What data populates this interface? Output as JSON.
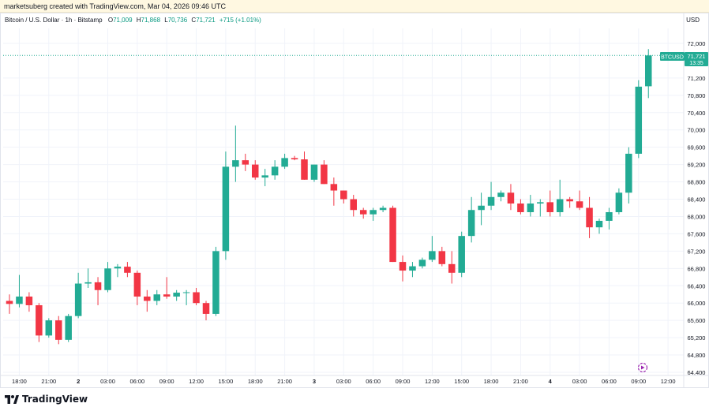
{
  "attribution": "marketsuberg created with TradingView.com, Mar 04, 2026 09:46 UTC",
  "legend": {
    "symbol_desc": "Bitcoin / U.S. Dollar · 1h · Bitstamp",
    "o_label": "O",
    "o_value": "71,009",
    "h_label": "H",
    "h_value": "71,868",
    "l_label": "L",
    "l_value": "70,736",
    "c_label": "C",
    "c_value": "71,721",
    "change": "+715 (+1.01%)"
  },
  "currency": "USD",
  "last_price": {
    "symbol": "BTCUSD",
    "price": "71,721",
    "countdown": "13:35",
    "value": 71721
  },
  "footer_brand": "TradingView",
  "colors": {
    "up": "#22ab94",
    "down": "#f23645",
    "up_text": "#089981",
    "grid": "#f0f3fa",
    "axis_text": "#131722",
    "last_line": "#22ab94"
  },
  "chart_data": {
    "type": "candlestick",
    "ylim": [
      64400,
      72400
    ],
    "yticks": [
      "72,000",
      "71,200",
      "70,800",
      "70,400",
      "70,000",
      "69,600",
      "69,200",
      "68,800",
      "68,400",
      "68,000",
      "67,600",
      "67,200",
      "66,800",
      "66,400",
      "66,000",
      "65,600",
      "65,200",
      "64,800",
      "64,400"
    ],
    "ytick_values": [
      72000,
      71200,
      70800,
      70400,
      70000,
      69600,
      69200,
      68800,
      68400,
      68000,
      67600,
      67200,
      66800,
      66400,
      66000,
      65600,
      65200,
      64800,
      64400
    ],
    "xticks": [
      {
        "label": "18:00",
        "i": 1
      },
      {
        "label": "21:00",
        "i": 4
      },
      {
        "label": "2",
        "i": 7
      },
      {
        "label": "03:00",
        "i": 10
      },
      {
        "label": "06:00",
        "i": 13
      },
      {
        "label": "09:00",
        "i": 16
      },
      {
        "label": "12:00",
        "i": 19
      },
      {
        "label": "15:00",
        "i": 22
      },
      {
        "label": "18:00",
        "i": 25
      },
      {
        "label": "21:00",
        "i": 28
      },
      {
        "label": "3",
        "i": 31
      },
      {
        "label": "03:00",
        "i": 34
      },
      {
        "label": "06:00",
        "i": 37
      },
      {
        "label": "09:00",
        "i": 40
      },
      {
        "label": "12:00",
        "i": 43
      },
      {
        "label": "15:00",
        "i": 46
      },
      {
        "label": "18:00",
        "i": 49
      },
      {
        "label": "21:00",
        "i": 52
      },
      {
        "label": "4",
        "i": 55
      },
      {
        "label": "03:00",
        "i": 58
      },
      {
        "label": "06:00",
        "i": 61
      },
      {
        "label": "09:00",
        "i": 64
      },
      {
        "label": "12:00",
        "i": 67
      }
    ],
    "candles": [
      {
        "o": 66050,
        "h": 66200,
        "l": 65750,
        "c": 65980
      },
      {
        "o": 65980,
        "h": 66650,
        "l": 65900,
        "c": 66150
      },
      {
        "o": 66150,
        "h": 66250,
        "l": 65800,
        "c": 65950
      },
      {
        "o": 65950,
        "h": 66000,
        "l": 65100,
        "c": 65250
      },
      {
        "o": 65250,
        "h": 65650,
        "l": 65200,
        "c": 65600
      },
      {
        "o": 65600,
        "h": 65700,
        "l": 65050,
        "c": 65150
      },
      {
        "o": 65150,
        "h": 65750,
        "l": 65100,
        "c": 65700
      },
      {
        "o": 65700,
        "h": 66700,
        "l": 65650,
        "c": 66450
      },
      {
        "o": 66450,
        "h": 66800,
        "l": 66350,
        "c": 66480
      },
      {
        "o": 66480,
        "h": 66600,
        "l": 65950,
        "c": 66300
      },
      {
        "o": 66300,
        "h": 66950,
        "l": 66250,
        "c": 66800
      },
      {
        "o": 66800,
        "h": 66900,
        "l": 66600,
        "c": 66840
      },
      {
        "o": 66840,
        "h": 66950,
        "l": 66600,
        "c": 66700
      },
      {
        "o": 66700,
        "h": 66750,
        "l": 65950,
        "c": 66150
      },
      {
        "o": 66150,
        "h": 66300,
        "l": 65800,
        "c": 66050
      },
      {
        "o": 66050,
        "h": 66300,
        "l": 65950,
        "c": 66200
      },
      {
        "o": 66200,
        "h": 66600,
        "l": 66100,
        "c": 66150
      },
      {
        "o": 66150,
        "h": 66300,
        "l": 66050,
        "c": 66240
      },
      {
        "o": 66240,
        "h": 66300,
        "l": 65950,
        "c": 66250
      },
      {
        "o": 66250,
        "h": 66350,
        "l": 65950,
        "c": 66000
      },
      {
        "o": 66000,
        "h": 66050,
        "l": 65600,
        "c": 65750
      },
      {
        "o": 65750,
        "h": 67300,
        "l": 65700,
        "c": 67200
      },
      {
        "o": 67200,
        "h": 69500,
        "l": 67000,
        "c": 69150
      },
      {
        "o": 69150,
        "h": 70100,
        "l": 68800,
        "c": 69300
      },
      {
        "o": 69300,
        "h": 69450,
        "l": 69050,
        "c": 69200
      },
      {
        "o": 69200,
        "h": 69300,
        "l": 68850,
        "c": 68900
      },
      {
        "o": 68900,
        "h": 69100,
        "l": 68700,
        "c": 68950
      },
      {
        "o": 68950,
        "h": 69300,
        "l": 68850,
        "c": 69150
      },
      {
        "o": 69150,
        "h": 69450,
        "l": 69100,
        "c": 69350
      },
      {
        "o": 69350,
        "h": 69400,
        "l": 69300,
        "c": 69320
      },
      {
        "o": 69320,
        "h": 69500,
        "l": 68850,
        "c": 68850
      },
      {
        "o": 68850,
        "h": 69200,
        "l": 68800,
        "c": 69200
      },
      {
        "o": 69200,
        "h": 69300,
        "l": 68750,
        "c": 68750
      },
      {
        "o": 68750,
        "h": 68900,
        "l": 68250,
        "c": 68600
      },
      {
        "o": 68600,
        "h": 68600,
        "l": 68300,
        "c": 68400
      },
      {
        "o": 68400,
        "h": 68500,
        "l": 68000,
        "c": 68150
      },
      {
        "o": 68150,
        "h": 68200,
        "l": 67950,
        "c": 68050
      },
      {
        "o": 68050,
        "h": 68200,
        "l": 67900,
        "c": 68150
      },
      {
        "o": 68150,
        "h": 68250,
        "l": 68100,
        "c": 68200
      },
      {
        "o": 68200,
        "h": 68250,
        "l": 66950,
        "c": 66950
      },
      {
        "o": 66950,
        "h": 67100,
        "l": 66500,
        "c": 66750
      },
      {
        "o": 66750,
        "h": 66950,
        "l": 66600,
        "c": 66850
      },
      {
        "o": 66850,
        "h": 67050,
        "l": 66800,
        "c": 67000
      },
      {
        "o": 67000,
        "h": 67550,
        "l": 66950,
        "c": 67200
      },
      {
        "o": 67200,
        "h": 67300,
        "l": 66850,
        "c": 66900
      },
      {
        "o": 66900,
        "h": 67200,
        "l": 66450,
        "c": 66700
      },
      {
        "o": 66700,
        "h": 67650,
        "l": 66600,
        "c": 67550
      },
      {
        "o": 67550,
        "h": 68450,
        "l": 67400,
        "c": 68150
      },
      {
        "o": 68150,
        "h": 68550,
        "l": 67800,
        "c": 68250
      },
      {
        "o": 68250,
        "h": 68800,
        "l": 68150,
        "c": 68450
      },
      {
        "o": 68450,
        "h": 68600,
        "l": 68350,
        "c": 68550
      },
      {
        "o": 68550,
        "h": 68750,
        "l": 68150,
        "c": 68300
      },
      {
        "o": 68300,
        "h": 68400,
        "l": 68050,
        "c": 68100
      },
      {
        "o": 68100,
        "h": 68500,
        "l": 68000,
        "c": 68300
      },
      {
        "o": 68300,
        "h": 68400,
        "l": 68000,
        "c": 68330
      },
      {
        "o": 68330,
        "h": 68600,
        "l": 68000,
        "c": 68100
      },
      {
        "o": 68100,
        "h": 68850,
        "l": 68000,
        "c": 68400
      },
      {
        "o": 68400,
        "h": 68450,
        "l": 68200,
        "c": 68350
      },
      {
        "o": 68350,
        "h": 68600,
        "l": 68150,
        "c": 68200
      },
      {
        "o": 68200,
        "h": 68450,
        "l": 67500,
        "c": 67750
      },
      {
        "o": 67750,
        "h": 67950,
        "l": 67600,
        "c": 67900
      },
      {
        "o": 67900,
        "h": 68200,
        "l": 67700,
        "c": 68100
      },
      {
        "o": 68100,
        "h": 68650,
        "l": 68050,
        "c": 68550
      },
      {
        "o": 68550,
        "h": 69600,
        "l": 68300,
        "c": 69450
      },
      {
        "o": 69450,
        "h": 71150,
        "l": 69350,
        "c": 71000
      },
      {
        "o": 71009,
        "h": 71868,
        "l": 70736,
        "c": 71721
      }
    ]
  }
}
